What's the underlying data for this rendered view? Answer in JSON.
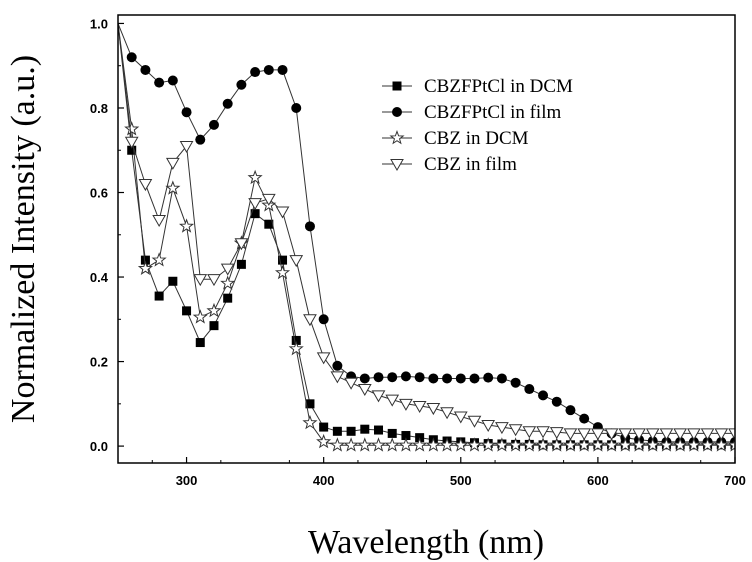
{
  "chart_data": {
    "type": "line",
    "xlabel": "Wavelength (nm)",
    "ylabel": "Normalized Intensity (a.u.)",
    "xlim": [
      250,
      700
    ],
    "ylim": [
      -0.04,
      1.02
    ],
    "xticks": [
      "300",
      "400",
      "500",
      "600",
      "700"
    ],
    "yticks": [
      "0.0",
      "0.2",
      "0.4",
      "0.6",
      "0.8",
      "1.0"
    ],
    "legend_position": "top-right",
    "series": [
      {
        "name": "CBZFPtCl in DCM",
        "marker": "square-filled",
        "x": [
          250,
          260,
          270,
          280,
          290,
          300,
          310,
          320,
          330,
          340,
          350,
          360,
          370,
          380,
          390,
          400,
          410,
          420,
          430,
          440,
          450,
          460,
          470,
          480,
          490,
          500,
          510,
          520,
          530,
          540,
          550,
          560,
          570,
          580,
          590,
          600,
          610,
          620,
          630,
          640,
          650,
          660,
          670,
          680,
          690,
          700
        ],
        "values": [
          1.0,
          0.7,
          0.44,
          0.355,
          0.39,
          0.32,
          0.245,
          0.285,
          0.35,
          0.43,
          0.55,
          0.525,
          0.44,
          0.25,
          0.1,
          0.045,
          0.035,
          0.035,
          0.04,
          0.038,
          0.03,
          0.025,
          0.02,
          0.015,
          0.012,
          0.01,
          0.008,
          0.006,
          0.005,
          0.004,
          0.004,
          0.003,
          0.003,
          0.003,
          0.003,
          0.003,
          0.003,
          0.003,
          0.003,
          0.003,
          0.003,
          0.003,
          0.003,
          0.003,
          0.003,
          0.003
        ]
      },
      {
        "name": "CBZFPtCl in film",
        "marker": "circle-filled",
        "x": [
          250,
          260,
          270,
          280,
          290,
          300,
          310,
          320,
          330,
          340,
          350,
          360,
          370,
          380,
          390,
          400,
          410,
          420,
          430,
          440,
          450,
          460,
          470,
          480,
          490,
          500,
          510,
          520,
          530,
          540,
          550,
          560,
          570,
          580,
          590,
          600,
          610,
          620,
          630,
          640,
          650,
          660,
          670,
          680,
          690,
          700
        ],
        "values": [
          1.0,
          0.92,
          0.89,
          0.86,
          0.865,
          0.79,
          0.725,
          0.76,
          0.81,
          0.855,
          0.885,
          0.89,
          0.89,
          0.8,
          0.52,
          0.3,
          0.19,
          0.165,
          0.16,
          0.163,
          0.163,
          0.165,
          0.163,
          0.16,
          0.16,
          0.16,
          0.16,
          0.162,
          0.16,
          0.15,
          0.135,
          0.12,
          0.105,
          0.085,
          0.065,
          0.045,
          0.03,
          0.02,
          0.015,
          0.012,
          0.01,
          0.01,
          0.01,
          0.01,
          0.01,
          0.01
        ]
      },
      {
        "name": "CBZ  in DCM",
        "marker": "star-open",
        "x": [
          250,
          260,
          270,
          280,
          290,
          300,
          310,
          320,
          330,
          340,
          350,
          360,
          370,
          380,
          390,
          400,
          410,
          420,
          430,
          440,
          450,
          460,
          470,
          480,
          490,
          500,
          510,
          520,
          530,
          540,
          550,
          560,
          570,
          580,
          590,
          600,
          610,
          620,
          630,
          640,
          650,
          660,
          670,
          680,
          690,
          700
        ],
        "values": [
          1.0,
          0.75,
          0.42,
          0.44,
          0.61,
          0.52,
          0.305,
          0.32,
          0.385,
          0.48,
          0.635,
          0.57,
          0.41,
          0.23,
          0.055,
          0.01,
          0.002,
          0.002,
          0.002,
          0.002,
          0.002,
          0.002,
          0.002,
          0.002,
          0.002,
          0.002,
          0.002,
          0.002,
          0.002,
          0.002,
          0.002,
          0.002,
          0.002,
          0.002,
          0.002,
          0.002,
          0.002,
          0.002,
          0.002,
          0.002,
          0.002,
          0.002,
          0.002,
          0.002,
          0.002,
          0.002
        ]
      },
      {
        "name": "CBZ  in film",
        "marker": "triangle-down-open",
        "x": [
          250,
          260,
          270,
          280,
          290,
          300,
          310,
          320,
          330,
          340,
          350,
          360,
          370,
          380,
          390,
          400,
          410,
          420,
          430,
          440,
          450,
          460,
          470,
          480,
          490,
          500,
          510,
          520,
          530,
          540,
          550,
          560,
          570,
          580,
          590,
          600,
          610,
          620,
          630,
          640,
          650,
          660,
          670,
          680,
          690,
          700
        ],
        "values": [
          1.0,
          0.72,
          0.62,
          0.535,
          0.67,
          0.71,
          0.395,
          0.395,
          0.42,
          0.48,
          0.575,
          0.585,
          0.555,
          0.44,
          0.3,
          0.21,
          0.165,
          0.15,
          0.135,
          0.12,
          0.11,
          0.1,
          0.095,
          0.09,
          0.08,
          0.07,
          0.06,
          0.05,
          0.045,
          0.04,
          0.035,
          0.035,
          0.033,
          0.03,
          0.03,
          0.03,
          0.03,
          0.03,
          0.03,
          0.03,
          0.03,
          0.03,
          0.03,
          0.03,
          0.03,
          0.03
        ]
      }
    ]
  }
}
